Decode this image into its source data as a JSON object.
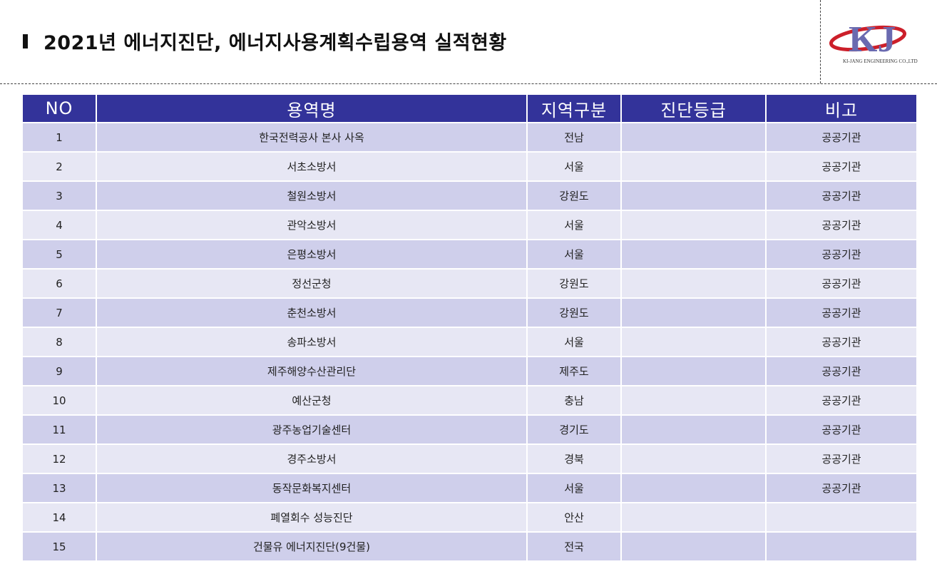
{
  "header": {
    "title": "2021년 에너지진단, 에너지사용계획수립용역 실적현황",
    "logo_letters": "KJ",
    "logo_caption": "KI-JANG ENGINEERING CO.,LTD",
    "logo_colors": {
      "primary": "#6a6ab0",
      "accent": "#cc1f2a",
      "letters": "#3a3a8f"
    }
  },
  "table": {
    "columns": [
      "NO",
      "용역명",
      "지역구분",
      "진단등급",
      "비고"
    ],
    "rows": [
      {
        "no": "1",
        "name": "한국전력공사 본사 사옥",
        "region": "전남",
        "grade": "",
        "note": "공공기관"
      },
      {
        "no": "2",
        "name": "서초소방서",
        "region": "서울",
        "grade": "",
        "note": "공공기관"
      },
      {
        "no": "3",
        "name": "철원소방서",
        "region": "강원도",
        "grade": "",
        "note": "공공기관"
      },
      {
        "no": "4",
        "name": "관악소방서",
        "region": "서울",
        "grade": "",
        "note": "공공기관"
      },
      {
        "no": "5",
        "name": "은평소방서",
        "region": "서울",
        "grade": "",
        "note": "공공기관"
      },
      {
        "no": "6",
        "name": "정선군청",
        "region": "강원도",
        "grade": "",
        "note": "공공기관"
      },
      {
        "no": "7",
        "name": "춘천소방서",
        "region": "강원도",
        "grade": "",
        "note": "공공기관"
      },
      {
        "no": "8",
        "name": "송파소방서",
        "region": "서울",
        "grade": "",
        "note": "공공기관"
      },
      {
        "no": "9",
        "name": "제주해양수산관리단",
        "region": "제주도",
        "grade": "",
        "note": "공공기관"
      },
      {
        "no": "10",
        "name": "예산군청",
        "region": "충남",
        "grade": "",
        "note": "공공기관"
      },
      {
        "no": "11",
        "name": "광주농업기술센터",
        "region": "경기도",
        "grade": "",
        "note": "공공기관"
      },
      {
        "no": "12",
        "name": "경주소방서",
        "region": "경북",
        "grade": "",
        "note": "공공기관"
      },
      {
        "no": "13",
        "name": "동작문화복지센터",
        "region": "서울",
        "grade": "",
        "note": "공공기관"
      },
      {
        "no": "14",
        "name": "폐열회수 성능진단",
        "region": "안산",
        "grade": "",
        "note": ""
      },
      {
        "no": "15",
        "name": "건물유 에너지진단(9건물)",
        "region": "전국",
        "grade": "",
        "note": ""
      }
    ],
    "header_color": "#33339a",
    "row_colors": [
      "#cfcfeb",
      "#e7e7f4"
    ]
  }
}
